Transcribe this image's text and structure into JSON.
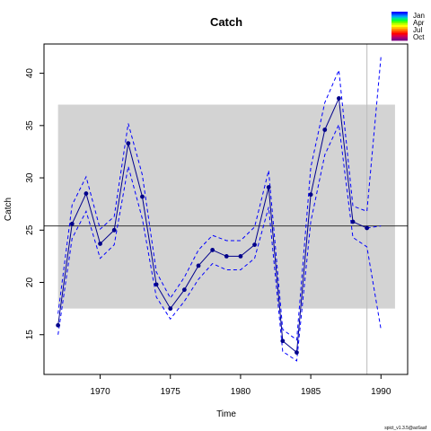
{
  "chart_data": {
    "type": "line",
    "title": "Catch",
    "xlabel": "Time",
    "ylabel": "Catch",
    "xlim": [
      1966.0,
      1991.9
    ],
    "ylim": [
      11.2,
      42.8
    ],
    "x_ticks": [
      1970,
      1975,
      1980,
      1985,
      1990
    ],
    "y_ticks": [
      15,
      20,
      25,
      30,
      35,
      40
    ],
    "grid": false,
    "band": {
      "x0": 1967,
      "x1": 1991,
      "y0": 17.5,
      "y1": 37.0,
      "color": "#d3d3d3"
    },
    "hline": {
      "y": 25.4,
      "color": "#333333"
    },
    "vline": {
      "x": 1989,
      "color": "#bbbbbb"
    },
    "series": [
      {
        "style": "line-points",
        "color": "#00008b",
        "x": [
          1967,
          1968,
          1969,
          1970,
          1971,
          1972,
          1973,
          1974,
          1975,
          1976,
          1977,
          1978,
          1979,
          1980,
          1981,
          1982,
          1983,
          1984,
          1985,
          1986,
          1987,
          1988,
          1989
        ],
        "y": [
          15.9,
          25.6,
          28.5,
          23.7,
          25.0,
          33.3,
          28.2,
          19.8,
          17.5,
          19.3,
          21.6,
          23.1,
          22.5,
          22.5,
          23.6,
          29.1,
          14.4,
          13.3,
          28.4,
          34.6,
          37.6,
          25.8,
          25.2
        ]
      },
      {
        "style": "dashed",
        "color": "#0000ff",
        "x": [
          1967,
          1968,
          1969,
          1970,
          1971,
          1972,
          1973,
          1974,
          1975,
          1976,
          1977,
          1978,
          1979,
          1980,
          1981,
          1982,
          1983,
          1984,
          1985,
          1986,
          1987,
          1988,
          1989,
          1990
        ],
        "y": [
          17.0,
          27.4,
          30.1,
          25.1,
          26.3,
          35.2,
          30.3,
          21.0,
          18.5,
          20.5,
          23.1,
          24.5,
          24.0,
          24.0,
          25.3,
          30.7,
          15.5,
          14.5,
          31.0,
          37.2,
          40.3,
          27.3,
          26.8,
          41.6
        ]
      },
      {
        "style": "dashed",
        "color": "#0000ff",
        "x": [
          1967,
          1968,
          1969,
          1970,
          1971,
          1972,
          1973,
          1974,
          1975,
          1976,
          1977,
          1978,
          1979,
          1980,
          1981,
          1982,
          1983,
          1984,
          1985,
          1986,
          1987,
          1988,
          1989,
          1990
        ],
        "y": [
          15.0,
          24.2,
          26.8,
          22.3,
          23.6,
          31.1,
          26.1,
          18.6,
          16.5,
          18.2,
          20.3,
          21.8,
          21.2,
          21.2,
          22.3,
          27.2,
          13.4,
          12.5,
          25.8,
          32.2,
          35.1,
          24.3,
          23.4,
          15.5
        ]
      },
      {
        "style": "dashed",
        "color": "#0000ff",
        "x": [
          1989,
          1990
        ],
        "y": [
          25.2,
          25.4
        ]
      }
    ],
    "legend": {
      "placement": "top-right",
      "labels": [
        "Jan",
        "Apr",
        "Jul",
        "Oct"
      ],
      "colors": [
        "#0000ff",
        "#0055ff",
        "#00a0ff",
        "#00e0a0",
        "#00ff40",
        "#60ff00",
        "#c0ff00",
        "#ffff00",
        "#ffc000",
        "#ff8000",
        "#ff4000",
        "#ff0000",
        "#e00040",
        "#b00070",
        "#800080"
      ]
    },
    "footnote": "spict_v1.3.5@ac6aaf"
  }
}
